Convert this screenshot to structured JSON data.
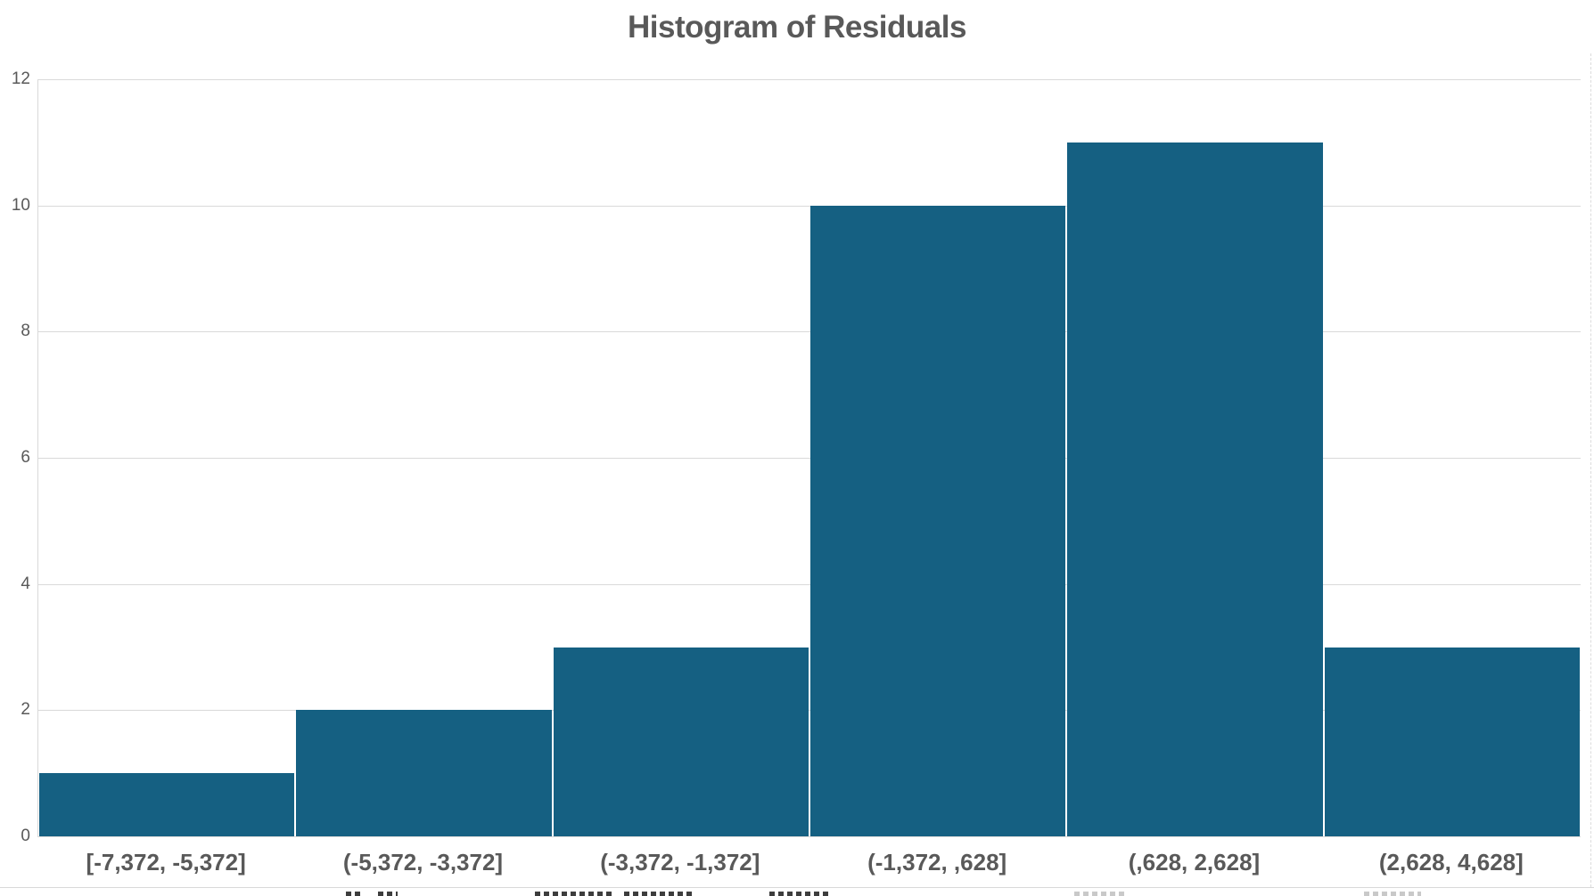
{
  "chart_title": "Histogram of Residuals",
  "chart_data": {
    "type": "bar",
    "chart_style": "histogram",
    "title": "Histogram of Residuals",
    "categories": [
      "[-7,372, -5,372]",
      "(-5,372, -3,372]",
      "(-3,372, -1,372]",
      "(-1,372, ,628]",
      "(,628, 2,628]",
      "(2,628, 4,628]"
    ],
    "values": [
      1,
      2,
      3,
      10,
      11,
      3
    ],
    "xlabel": "",
    "ylabel": "",
    "ylim": [
      0,
      12
    ],
    "yticks": [
      0,
      2,
      4,
      6,
      8,
      10,
      12
    ],
    "grid": true,
    "legend_position": "none",
    "bar_color": "#156082",
    "bar_gap_color": "#FFFFFF",
    "gridline_color": "#D9D9D9",
    "text_color": "#595959",
    "background_color": "#FFFFFF"
  }
}
